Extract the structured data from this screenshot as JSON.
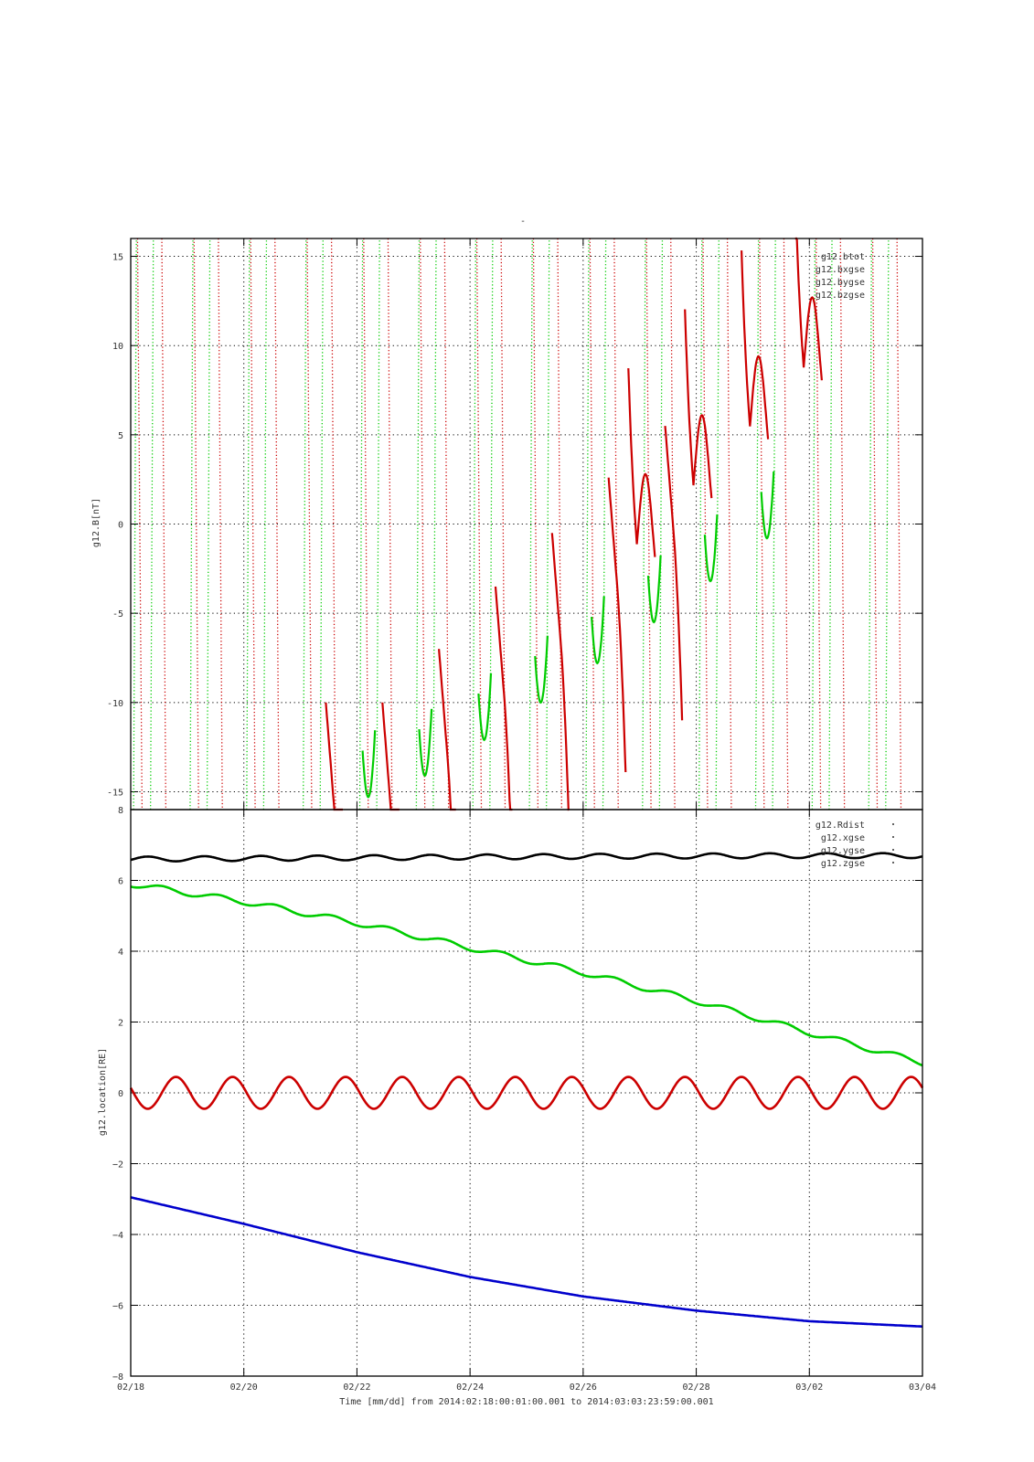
{
  "chart_data": [
    {
      "type": "line",
      "title": "-",
      "ylabel": "g12.B[nT]",
      "ylim": [
        -16,
        16
      ],
      "yticks": [
        -15,
        -10,
        -5,
        0,
        5,
        10,
        15
      ],
      "xlim_days": [
        0,
        14
      ],
      "grid": true,
      "legend_position": "top-right",
      "series": [
        {
          "name": "g12.btot",
          "color": "#000000",
          "values": []
        },
        {
          "name": "g12.bxgse",
          "color": "#cc0000",
          "style": "solid where in range, dotted steep wraps",
          "approx_local_extrema": [
            [
              9.1,
              2.8
            ],
            [
              10.1,
              6.1
            ],
            [
              11.1,
              9.4
            ],
            [
              12.05,
              12.7
            ]
          ]
        },
        {
          "name": "g12.bygse",
          "color": "#00cc00",
          "style": "dotted steep wraps",
          "approx_minima": [
            [
              4.2,
              -15.3
            ],
            [
              5.2,
              -14.1
            ],
            [
              6.25,
              -12.1
            ],
            [
              7.25,
              -10.0
            ],
            [
              8.25,
              -7.8
            ],
            [
              9.25,
              -5.5
            ],
            [
              10.25,
              -3.2
            ],
            [
              11.25,
              -0.8
            ]
          ]
        },
        {
          "name": "g12.bzgse",
          "color": "#0000cc",
          "values": []
        }
      ]
    },
    {
      "type": "line",
      "ylabel": "g12.location[RE]",
      "ylim": [
        -8,
        8
      ],
      "yticks": [
        -8,
        -6,
        -4,
        -2,
        0,
        2,
        4,
        6,
        8
      ],
      "xlabel": "Time [mm/dd]  from 2014:02:18:00:01:00.001  to  2014:03:03:23:59:00.001",
      "xticks": [
        "02/18",
        "02/20",
        "02/22",
        "02/24",
        "02/26",
        "02/28",
        "03/02",
        "03/04"
      ],
      "xlim_days": [
        0,
        14
      ],
      "grid": true,
      "legend_position": "top-right",
      "series": [
        {
          "name": "g12.Rdist",
          "color": "#000000",
          "x_days": [
            0,
            2,
            4,
            6,
            8,
            10,
            12,
            14
          ],
          "y": [
            6.6,
            6.62,
            6.64,
            6.66,
            6.68,
            6.69,
            6.7,
            6.7
          ],
          "oscillation_amplitude": 0.07
        },
        {
          "name": "g12.xgse",
          "color": "#00cc00",
          "x_days": [
            0,
            2,
            4,
            6,
            8,
            10,
            12,
            14
          ],
          "y": [
            5.9,
            5.4,
            4.8,
            4.1,
            3.4,
            2.6,
            1.7,
            0.85
          ]
        },
        {
          "name": "g12.ygse",
          "color": "#cc0000",
          "x_days": [
            0,
            14
          ],
          "y": [
            0,
            0
          ],
          "oscillation_amplitude": 0.45,
          "period_days": 1
        },
        {
          "name": "g12.zgse",
          "color": "#0000cc",
          "x_days": [
            0,
            2,
            4,
            6,
            8,
            10,
            12,
            14
          ],
          "y": [
            -2.95,
            -3.7,
            -4.5,
            -5.2,
            -5.75,
            -6.15,
            -6.45,
            -6.6
          ]
        }
      ]
    }
  ]
}
